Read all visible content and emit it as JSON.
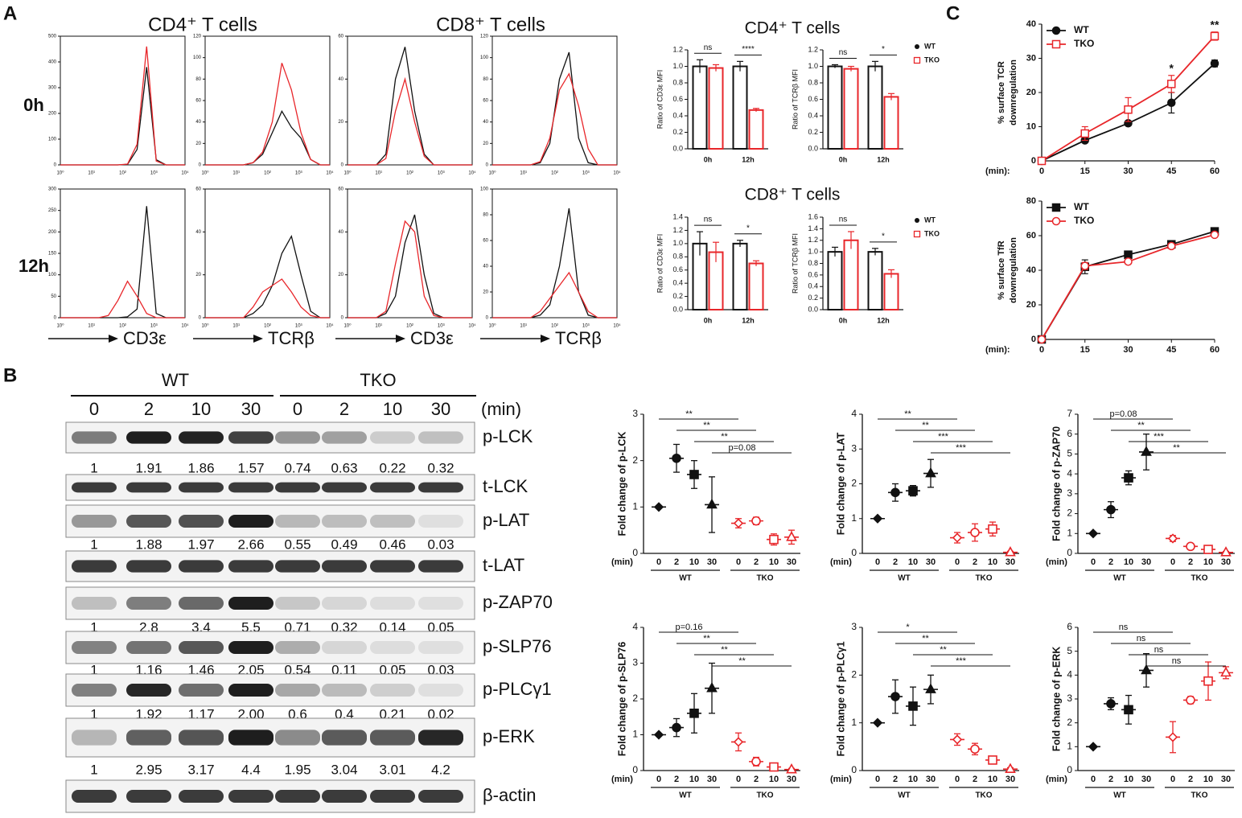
{
  "panels": [
    "A",
    "B",
    "C"
  ],
  "flow": {
    "headers": [
      "CD4⁺ T cells",
      "CD8⁺ T cells"
    ],
    "rows": [
      "0h",
      "12h"
    ],
    "xlabels": [
      "CD3ε",
      "TCRβ",
      "CD3ε",
      "TCRβ"
    ],
    "xticks": [
      "10⁰",
      "10¹",
      "10²",
      "10³",
      "10⁴"
    ],
    "series": [
      {
        "name": "WT",
        "color": "#111111"
      },
      {
        "name": "TKO",
        "color": "#e8262a"
      }
    ],
    "plots": [
      {
        "ylim": [
          0,
          500
        ],
        "yticks": [
          0,
          100,
          200,
          300,
          400,
          500
        ],
        "wt": [
          0,
          0,
          0,
          0,
          0,
          0,
          0,
          2,
          60,
          380,
          20,
          0,
          0,
          0
        ],
        "tko": [
          0,
          0,
          0,
          0,
          0,
          0,
          0,
          3,
          80,
          460,
          15,
          0,
          0,
          0
        ]
      },
      {
        "ylim": [
          0,
          120
        ],
        "yticks": [
          0,
          20,
          40,
          60,
          80,
          100,
          120
        ],
        "wt": [
          0,
          0,
          0,
          0,
          0,
          2,
          10,
          30,
          50,
          35,
          25,
          5,
          0,
          0
        ],
        "tko": [
          0,
          0,
          0,
          0,
          0,
          2,
          12,
          40,
          95,
          70,
          30,
          5,
          0,
          0
        ]
      },
      {
        "ylim": [
          0,
          60
        ],
        "yticks": [
          0,
          20,
          40,
          60
        ],
        "wt": [
          0,
          0,
          0,
          0,
          5,
          40,
          55,
          25,
          5,
          0,
          0,
          0,
          0,
          0
        ],
        "tko": [
          0,
          0,
          0,
          0,
          3,
          25,
          40,
          20,
          4,
          0,
          0,
          0,
          0,
          0
        ]
      },
      {
        "ylim": [
          0,
          120
        ],
        "yticks": [
          0,
          20,
          40,
          60,
          80,
          100,
          120
        ],
        "wt": [
          0,
          0,
          0,
          0,
          0,
          2,
          20,
          80,
          105,
          25,
          2,
          0,
          0,
          0
        ],
        "tko": [
          0,
          0,
          0,
          0,
          0,
          3,
          25,
          70,
          85,
          55,
          15,
          0,
          0,
          0
        ]
      },
      {
        "ylim": [
          0,
          300
        ],
        "yticks": [
          0,
          50,
          100,
          150,
          200,
          250,
          300
        ],
        "wt": [
          0,
          0,
          0,
          0,
          0,
          0,
          0,
          2,
          20,
          260,
          10,
          0,
          0,
          0
        ],
        "tko": [
          0,
          0,
          0,
          0,
          0,
          5,
          40,
          85,
          50,
          10,
          0,
          0,
          0,
          0
        ]
      },
      {
        "ylim": [
          0,
          60
        ],
        "yticks": [
          0,
          20,
          40,
          60
        ],
        "wt": [
          0,
          0,
          0,
          0,
          0,
          2,
          6,
          15,
          30,
          38,
          20,
          3,
          0,
          0
        ],
        "tko": [
          0,
          0,
          0,
          0,
          0,
          5,
          12,
          15,
          18,
          12,
          5,
          1,
          0,
          0
        ]
      },
      {
        "ylim": [
          0,
          60
        ],
        "yticks": [
          0,
          20,
          40,
          60
        ],
        "wt": [
          0,
          0,
          0,
          0,
          2,
          10,
          35,
          48,
          20,
          2,
          0,
          0,
          0,
          0
        ],
        "tko": [
          0,
          0,
          0,
          0,
          3,
          25,
          45,
          40,
          10,
          1,
          0,
          0,
          0,
          0
        ]
      },
      {
        "ylim": [
          0,
          100
        ],
        "yticks": [
          0,
          20,
          40,
          60,
          80,
          100
        ],
        "wt": [
          0,
          0,
          0,
          0,
          0,
          2,
          10,
          40,
          85,
          20,
          2,
          0,
          0,
          0
        ],
        "tko": [
          0,
          0,
          0,
          0,
          0,
          5,
          15,
          25,
          35,
          20,
          5,
          0,
          0,
          0
        ]
      }
    ]
  },
  "blot": {
    "groups": [
      "WT",
      "TKO"
    ],
    "lanes": [
      "0",
      "2",
      "10",
      "30",
      "0",
      "2",
      "10",
      "30"
    ],
    "unit": "(min)",
    "rows": [
      {
        "label": "p-LCK",
        "quant": [
          "1",
          "1.91",
          "1.86",
          "1.57",
          "0.74",
          "0.63",
          "0.22",
          "0.32"
        ]
      },
      {
        "label": "t-LCK"
      },
      {
        "label": "p-LAT",
        "quant": [
          "1",
          "1.88",
          "1.97",
          "2.66",
          "0.55",
          "0.49",
          "0.46",
          "0.03"
        ]
      },
      {
        "label": "t-LAT"
      },
      {
        "label": "p-ZAP70",
        "quant": [
          "1",
          "2.8",
          "3.4",
          "5.5",
          "0.71",
          "0.32",
          "0.14",
          "0.05"
        ]
      },
      {
        "label": "p-SLP76",
        "quant": [
          "1",
          "1.16",
          "1.46",
          "2.05",
          "0.54",
          "0.11",
          "0.05",
          "0.03"
        ]
      },
      {
        "label": "p-PLCγ1",
        "quant": [
          "1",
          "1.92",
          "1.17",
          "2.00",
          "0.6",
          "0.4",
          "0.21",
          "0.02"
        ]
      },
      {
        "label": "p-ERK",
        "quant": [
          "1",
          "2.95",
          "3.17",
          "4.4",
          "1.95",
          "3.04",
          "3.01",
          "4.2"
        ]
      },
      {
        "label": "β-actin"
      }
    ]
  },
  "chart_data": [
    {
      "type": "bar",
      "title": "CD4⁺ T cells",
      "ylabel": "Ratio of CD3ε MFI",
      "categories": [
        "0h",
        "12h"
      ],
      "series": [
        {
          "name": "WT",
          "color": "#111111",
          "values": [
            1.0,
            1.0
          ],
          "errors": [
            0.08,
            0.06
          ]
        },
        {
          "name": "TKO",
          "color": "#e8262a",
          "values": [
            0.98,
            0.47
          ],
          "errors": [
            0.04,
            0.02
          ]
        }
      ],
      "ylim": [
        0,
        1.2
      ],
      "yticks": [
        {
          "value": 0,
          "label": "0.0"
        },
        0.2,
        0.4,
        0.6,
        0.8,
        {
          "value": 1,
          "label": "1.0"
        },
        1.2
      ],
      "annotations": [
        "ns",
        "****"
      ]
    },
    {
      "type": "bar",
      "ylabel": "Ratio of TCRβ MFI",
      "categories": [
        "0h",
        "12h"
      ],
      "series": [
        {
          "name": "WT",
          "color": "#111111",
          "values": [
            1.0,
            1.0
          ],
          "errors": [
            0.02,
            0.06
          ]
        },
        {
          "name": "TKO",
          "color": "#e8262a",
          "values": [
            0.97,
            0.63
          ],
          "errors": [
            0.03,
            0.04
          ]
        }
      ],
      "ylim": [
        0,
        1.2
      ],
      "yticks": [
        {
          "value": 0,
          "label": "0.0"
        },
        0.2,
        0.4,
        0.6,
        0.8,
        {
          "value": 1,
          "label": "1.0"
        },
        1.2
      ],
      "annotations": [
        "ns",
        "*"
      ],
      "legend": "right"
    },
    {
      "type": "bar",
      "title": "CD8⁺ T cells",
      "ylabel": "Ratio of CD3ε MFI",
      "categories": [
        "0h",
        "12h"
      ],
      "series": [
        {
          "name": "WT",
          "color": "#111111",
          "values": [
            1.0,
            1.0
          ],
          "errors": [
            0.18,
            0.05
          ]
        },
        {
          "name": "TKO",
          "color": "#e8262a",
          "values": [
            0.87,
            0.7
          ],
          "errors": [
            0.15,
            0.04
          ]
        }
      ],
      "ylim": [
        0,
        1.4
      ],
      "yticks": [
        {
          "value": 0,
          "label": "0.0"
        },
        0.2,
        0.4,
        0.6,
        0.8,
        {
          "value": 1,
          "label": "1.0"
        },
        1.2,
        1.4
      ],
      "annotations": [
        "ns",
        "*"
      ]
    },
    {
      "type": "bar",
      "ylabel": "Ratio of TCRβ MFI",
      "categories": [
        "0h",
        "12h"
      ],
      "series": [
        {
          "name": "WT",
          "color": "#111111",
          "values": [
            1.0,
            1.0
          ],
          "errors": [
            0.08,
            0.06
          ]
        },
        {
          "name": "TKO",
          "color": "#e8262a",
          "values": [
            1.2,
            0.62
          ],
          "errors": [
            0.15,
            0.07
          ]
        }
      ],
      "ylim": [
        0,
        1.6
      ],
      "yticks": [
        {
          "value": 0,
          "label": "0.0"
        },
        0.2,
        0.4,
        0.6,
        0.8,
        {
          "value": 1,
          "label": "1.0"
        },
        1.2,
        1.4,
        1.6
      ],
      "annotations": [
        "ns",
        "*"
      ],
      "legend": "right"
    },
    {
      "type": "line",
      "ylabel": [
        "% surface TCR",
        "downregulation"
      ],
      "xlabel": "(min):",
      "x": [
        0,
        15,
        30,
        45,
        60
      ],
      "series": [
        {
          "name": "WT",
          "color": "#111111",
          "marker": "circle",
          "values": [
            0,
            6,
            11,
            17,
            28.5
          ],
          "errors": [
            0,
            0.5,
            0.5,
            3,
            1
          ]
        },
        {
          "name": "TKO",
          "color": "#e8262a",
          "marker": "open-square",
          "values": [
            0,
            8,
            15,
            22.5,
            36.5
          ],
          "errors": [
            0,
            2,
            3.5,
            2.5,
            1.2
          ]
        }
      ],
      "xlim": [
        0,
        60
      ],
      "xticks": [
        0,
        15,
        30,
        45,
        60
      ],
      "ylim": [
        0,
        40
      ],
      "yticks": [
        0,
        10,
        20,
        30,
        40
      ],
      "annotations": [
        {
          "x": 45,
          "text": "*"
        },
        {
          "x": 60,
          "text": "**"
        }
      ],
      "legend": "upper left"
    },
    {
      "type": "line",
      "ylabel": [
        "% surface TfR",
        "downregulation"
      ],
      "xlabel": "(min):",
      "x": [
        0,
        15,
        30,
        45,
        60
      ],
      "series": [
        {
          "name": "WT",
          "color": "#111111",
          "marker": "square",
          "values": [
            0,
            42,
            49,
            55,
            62.5
          ],
          "errors": [
            0,
            4,
            1,
            2,
            1
          ]
        },
        {
          "name": "TKO",
          "color": "#e8262a",
          "marker": "open-circle",
          "values": [
            0,
            42.5,
            45,
            54,
            60.5
          ],
          "errors": [
            0,
            2,
            1,
            1.5,
            1
          ]
        }
      ],
      "xlim": [
        0,
        60
      ],
      "xticks": [
        0,
        15,
        30,
        45,
        60
      ],
      "ylim": [
        0,
        80
      ],
      "yticks": [
        0,
        20,
        40,
        60,
        80
      ],
      "legend": "upper left"
    },
    {
      "type": "dot",
      "ylabel": "Fold change of p-LCK",
      "xlabel": "(min)",
      "categories": [
        "0",
        "2",
        "10",
        "30",
        "0",
        "2",
        "10",
        "30"
      ],
      "groups": [
        {
          "name": "WT",
          "color": "#111111"
        },
        {
          "name": "TKO",
          "color": "#e8262a"
        }
      ],
      "values": [
        1,
        2.05,
        1.7,
        1.05,
        0.65,
        0.7,
        0.3,
        0.35
      ],
      "errors": [
        0,
        0.3,
        0.3,
        0.6,
        0.1,
        0.08,
        0.12,
        0.15
      ],
      "ylim": [
        0,
        3
      ],
      "yticks": [
        0,
        1,
        2,
        3
      ],
      "comparisons": [
        "**",
        "**",
        "**",
        "p=0.08"
      ]
    },
    {
      "type": "dot",
      "ylabel": "Fold change of p-LAT",
      "xlabel": "(min)",
      "categories": [
        "0",
        "2",
        "10",
        "30",
        "0",
        "2",
        "10",
        "30"
      ],
      "groups": [
        {
          "name": "WT",
          "color": "#111111"
        },
        {
          "name": "TKO",
          "color": "#e8262a"
        }
      ],
      "values": [
        1,
        1.75,
        1.8,
        2.3,
        0.45,
        0.6,
        0.7,
        0.03
      ],
      "errors": [
        0,
        0.25,
        0.15,
        0.4,
        0.15,
        0.25,
        0.2,
        0.03
      ],
      "ylim": [
        0,
        4
      ],
      "yticks": [
        0,
        1,
        2,
        3,
        4
      ],
      "comparisons": [
        "**",
        "**",
        "***",
        "***"
      ]
    },
    {
      "type": "dot",
      "ylabel": "Fold change of p-ZAP70",
      "xlabel": "(min)",
      "categories": [
        "0",
        "2",
        "10",
        "30",
        "0",
        "2",
        "10",
        "30"
      ],
      "groups": [
        {
          "name": "WT",
          "color": "#111111"
        },
        {
          "name": "TKO",
          "color": "#e8262a"
        }
      ],
      "values": [
        1,
        2.2,
        3.8,
        5.1,
        0.75,
        0.35,
        0.2,
        0.05
      ],
      "errors": [
        0,
        0.4,
        0.35,
        0.9,
        0.15,
        0.08,
        0.08,
        0.05
      ],
      "ylim": [
        0,
        7
      ],
      "yticks": [
        0,
        1,
        2,
        3,
        4,
        5,
        6,
        7
      ],
      "comparisons": [
        "p=0.08",
        "**",
        "***",
        "**"
      ]
    },
    {
      "type": "dot",
      "ylabel": "Fold change of p-SLP76",
      "xlabel": "(min)",
      "categories": [
        "0",
        "2",
        "10",
        "30",
        "0",
        "2",
        "10",
        "30"
      ],
      "groups": [
        {
          "name": "WT",
          "color": "#111111"
        },
        {
          "name": "TKO",
          "color": "#e8262a"
        }
      ],
      "values": [
        1,
        1.2,
        1.6,
        2.3,
        0.8,
        0.25,
        0.1,
        0.03
      ],
      "errors": [
        0,
        0.25,
        0.55,
        0.7,
        0.25,
        0.12,
        0.08,
        0.03
      ],
      "ylim": [
        0,
        4
      ],
      "yticks": [
        0,
        1,
        2,
        3,
        4
      ],
      "comparisons": [
        "p=0.16",
        "**",
        "**",
        "**"
      ]
    },
    {
      "type": "dot",
      "ylabel": "Fold change of p-PLCγ1",
      "xlabel": "(min)",
      "categories": [
        "0",
        "2",
        "10",
        "30",
        "0",
        "2",
        "10",
        "30"
      ],
      "groups": [
        {
          "name": "WT",
          "color": "#111111"
        },
        {
          "name": "TKO",
          "color": "#e8262a"
        }
      ],
      "values": [
        1,
        1.55,
        1.35,
        1.7,
        0.65,
        0.45,
        0.22,
        0.03
      ],
      "errors": [
        0,
        0.35,
        0.4,
        0.3,
        0.12,
        0.12,
        0.05,
        0.03
      ],
      "ylim": [
        0,
        3
      ],
      "yticks": [
        0,
        1,
        2,
        3
      ],
      "comparisons": [
        "*",
        "**",
        "**",
        "***"
      ]
    },
    {
      "type": "dot",
      "ylabel": "Fold change of p-ERK",
      "xlabel": "(min)",
      "categories": [
        "0",
        "2",
        "10",
        "30",
        "0",
        "2",
        "10",
        "30"
      ],
      "groups": [
        {
          "name": "WT",
          "color": "#111111"
        },
        {
          "name": "TKO",
          "color": "#e8262a"
        }
      ],
      "values": [
        1,
        2.8,
        2.55,
        4.2,
        1.4,
        2.95,
        3.75,
        4.1
      ],
      "errors": [
        0,
        0.25,
        0.6,
        0.7,
        0.65,
        0.15,
        0.8,
        0.25
      ],
      "ylim": [
        0,
        6
      ],
      "yticks": [
        0,
        1,
        2,
        3,
        4,
        5,
        6
      ],
      "comparisons": [
        "ns",
        "ns",
        "ns",
        "ns"
      ]
    }
  ]
}
